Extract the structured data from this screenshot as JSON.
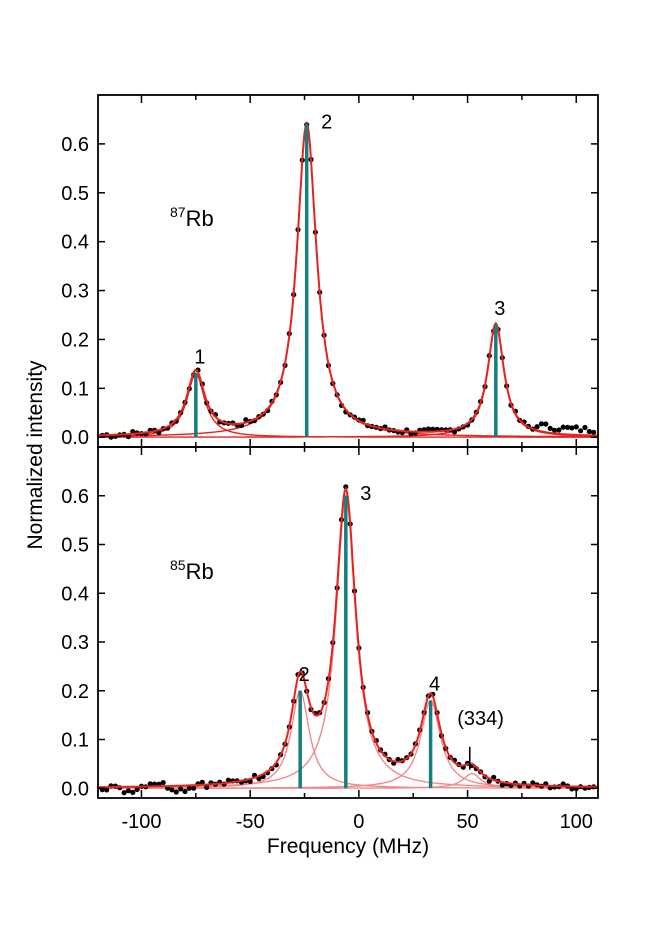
{
  "chart_data": [
    {
      "type": "scatter",
      "panel": "top",
      "isotope": {
        "mass": "87",
        "element": "Rb"
      },
      "ylabel": "Normalized intensity",
      "xlim": [
        -120,
        110
      ],
      "ylim": [
        -0.02,
        0.7
      ],
      "y_ticks": [
        0.0,
        0.1,
        0.2,
        0.3,
        0.4,
        0.5,
        0.6
      ],
      "y_tick_labels": [
        "0.0",
        "0.1",
        "0.2",
        "0.3",
        "0.4",
        "0.5",
        "0.6"
      ],
      "x_ticks": [
        -100,
        -50,
        0,
        50,
        100
      ],
      "grid": false,
      "peaks": [
        {
          "label": "1",
          "x": -75,
          "height": 0.13,
          "width": 10
        },
        {
          "label": "2",
          "x": -24,
          "height": 0.64,
          "width": 11
        },
        {
          "label": "3",
          "x": 63,
          "height": 0.23,
          "width": 9
        }
      ],
      "series": [
        {
          "kind": "measured",
          "color": "#000000"
        },
        {
          "kind": "fit-total",
          "color": "#e8231f"
        },
        {
          "kind": "fit-component",
          "color": "#e8231f"
        },
        {
          "kind": "stick",
          "color": "#137f7f"
        }
      ]
    },
    {
      "type": "scatter",
      "panel": "bottom",
      "isotope": {
        "mass": "85",
        "element": "Rb"
      },
      "xlabel": "Frequency (MHz)",
      "xlim": [
        -120,
        110
      ],
      "ylim": [
        -0.02,
        0.7
      ],
      "x_ticks": [
        -100,
        -50,
        0,
        50,
        100
      ],
      "x_tick_labels": [
        "-100",
        "-50",
        "0",
        "50",
        "100"
      ],
      "y_ticks": [
        0.0,
        0.1,
        0.2,
        0.3,
        0.4,
        0.5,
        0.6
      ],
      "y_tick_labels": [
        "0.0",
        "0.1",
        "0.2",
        "0.3",
        "0.4",
        "0.5",
        "0.6"
      ],
      "grid": false,
      "peaks": [
        {
          "label": "2",
          "x": -27,
          "height": 0.2,
          "width": 10
        },
        {
          "label": "3",
          "x": -6,
          "height": 0.6,
          "width": 11
        },
        {
          "label": "4",
          "x": 33,
          "height": 0.18,
          "width": 11
        },
        {
          "label": "(334)",
          "x": 52,
          "height": 0.03,
          "width": 10,
          "marker_only": true
        }
      ],
      "series": [
        {
          "kind": "measured",
          "color": "#000000"
        },
        {
          "kind": "fit-total",
          "color": "#e8231f"
        },
        {
          "kind": "fit-component",
          "color": "#f08a88"
        },
        {
          "kind": "stick",
          "color": "#137f7f"
        }
      ]
    }
  ]
}
